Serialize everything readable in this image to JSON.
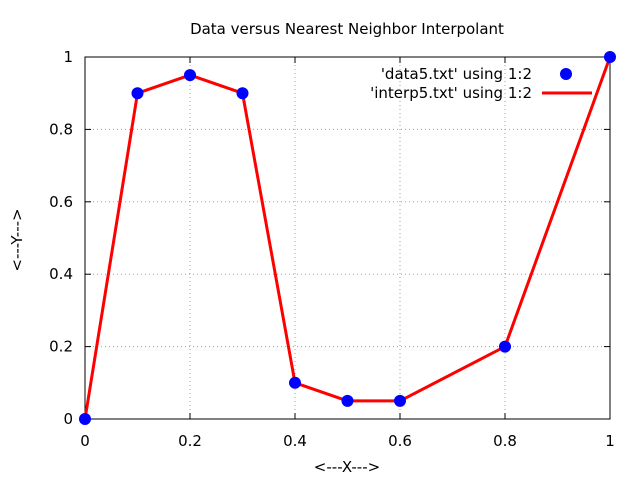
{
  "chart_data": {
    "type": "line",
    "title": "Data versus Nearest Neighbor Interpolant",
    "xlabel": "<---X--->",
    "ylabel": "<---Y--->",
    "xlim": [
      0,
      1
    ],
    "ylim": [
      0,
      1
    ],
    "x_ticks": [
      0,
      0.2,
      0.4,
      0.6,
      0.8,
      1
    ],
    "y_ticks": [
      0,
      0.2,
      0.4,
      0.6,
      0.8,
      1
    ],
    "x_tick_labels": [
      "0",
      "0.2",
      "0.4",
      "0.6",
      "0.8",
      "1"
    ],
    "y_tick_labels": [
      "0",
      "0.2",
      "0.4",
      "0.6",
      "0.8",
      "1"
    ],
    "grid": true,
    "legend_position": "top-right",
    "series": [
      {
        "name": "'data5.txt' using 1:2",
        "style": "points",
        "color": "#0000ff",
        "x": [
          0,
          0.1,
          0.2,
          0.3,
          0.4,
          0.5,
          0.6,
          0.8,
          1.0
        ],
        "y": [
          0,
          0.9,
          0.95,
          0.9,
          0.1,
          0.05,
          0.05,
          0.2,
          1.0
        ]
      },
      {
        "name": "'interp5.txt' using 1:2",
        "style": "line",
        "color": "#ff0000",
        "x": [
          0,
          0.1,
          0.2,
          0.3,
          0.4,
          0.5,
          0.6,
          0.8,
          1.0
        ],
        "y": [
          0,
          0.9,
          0.95,
          0.9,
          0.1,
          0.05,
          0.05,
          0.2,
          1.0
        ]
      }
    ]
  }
}
